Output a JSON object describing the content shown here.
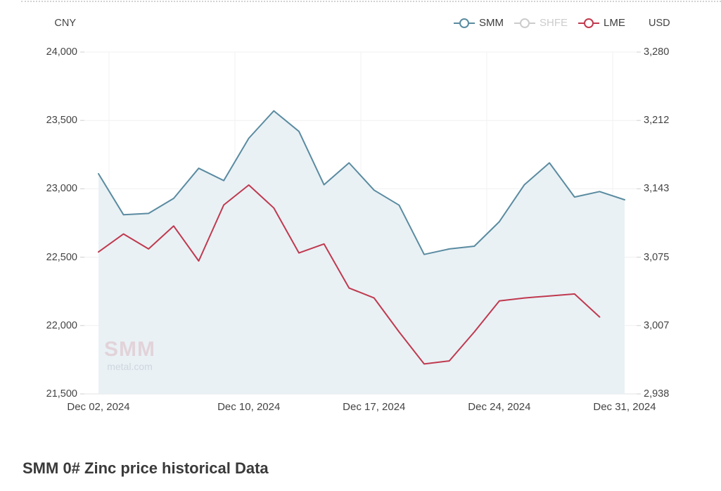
{
  "header": {
    "left_axis_currency": "CNY",
    "right_axis_currency": "USD"
  },
  "legend": {
    "items": [
      {
        "id": "smm",
        "label": "SMM",
        "color": "#5a8ba0",
        "enabled": true
      },
      {
        "id": "shfe",
        "label": "SHFE",
        "color": "#cccccc",
        "enabled": false
      },
      {
        "id": "lme",
        "label": "LME",
        "color": "#c0394e",
        "enabled": true
      }
    ]
  },
  "watermark": {
    "line1": "SMM",
    "line2": "metal.com"
  },
  "page_title": "SMM 0# Zinc price historical Data",
  "chart_data": {
    "type": "line",
    "title": "SMM 0# Zinc price historical Data",
    "legend_position": "top",
    "grid": true,
    "categories": [
      "Dec 02, 2024",
      "Dec 03, 2024",
      "Dec 04, 2024",
      "Dec 05, 2024",
      "Dec 06, 2024",
      "Dec 09, 2024",
      "Dec 10, 2024",
      "Dec 11, 2024",
      "Dec 12, 2024",
      "Dec 13, 2024",
      "Dec 16, 2024",
      "Dec 17, 2024",
      "Dec 18, 2024",
      "Dec 19, 2024",
      "Dec 20, 2024",
      "Dec 23, 2024",
      "Dec 24, 2024",
      "Dec 25, 2024",
      "Dec 26, 2024",
      "Dec 27, 2024",
      "Dec 30, 2024",
      "Dec 31, 2024"
    ],
    "series": [
      {
        "name": "SMM",
        "axis": "left",
        "color": "#5a8ba0",
        "area_fill": "#e9f1f5",
        "visible": true,
        "values": [
          23110,
          22810,
          22820,
          22930,
          23150,
          23060,
          23370,
          23570,
          23420,
          23030,
          23190,
          22990,
          22880,
          22520,
          22560,
          22580,
          22760,
          23030,
          23190,
          22940,
          22980,
          22920
        ]
      },
      {
        "name": "SHFE",
        "axis": "left",
        "color": "#cccccc",
        "visible": false,
        "values": []
      },
      {
        "name": "LME",
        "axis": "right",
        "color": "#c0394e",
        "visible": true,
        "values": [
          3080,
          3098,
          3083,
          3106,
          3071,
          3127,
          3147,
          3124,
          3079,
          3088,
          3044,
          3034,
          3000,
          2968,
          2971,
          3000,
          3031,
          3034,
          3036,
          3038,
          3015,
          null
        ]
      }
    ],
    "left_axis": {
      "title": "CNY",
      "min": 21500,
      "max": 24000,
      "tick_labels": [
        "24,000",
        "23,500",
        "23,000",
        "22,500",
        "22,000",
        "21,500"
      ]
    },
    "right_axis": {
      "title": "USD",
      "min": 2938,
      "max": 3280,
      "tick_labels": [
        "3,280",
        "3,212",
        "3,143",
        "3,075",
        "3,007",
        "2,938"
      ]
    },
    "x_axis": {
      "visible_labels": [
        {
          "index": 0,
          "text": "Dec 02, 2024"
        },
        {
          "index": 6,
          "text": "Dec 10, 2024"
        },
        {
          "index": 11,
          "text": "Dec 17, 2024"
        },
        {
          "index": 16,
          "text": "Dec 24, 2024"
        },
        {
          "index": 21,
          "text": "Dec 31, 2024"
        }
      ]
    }
  }
}
